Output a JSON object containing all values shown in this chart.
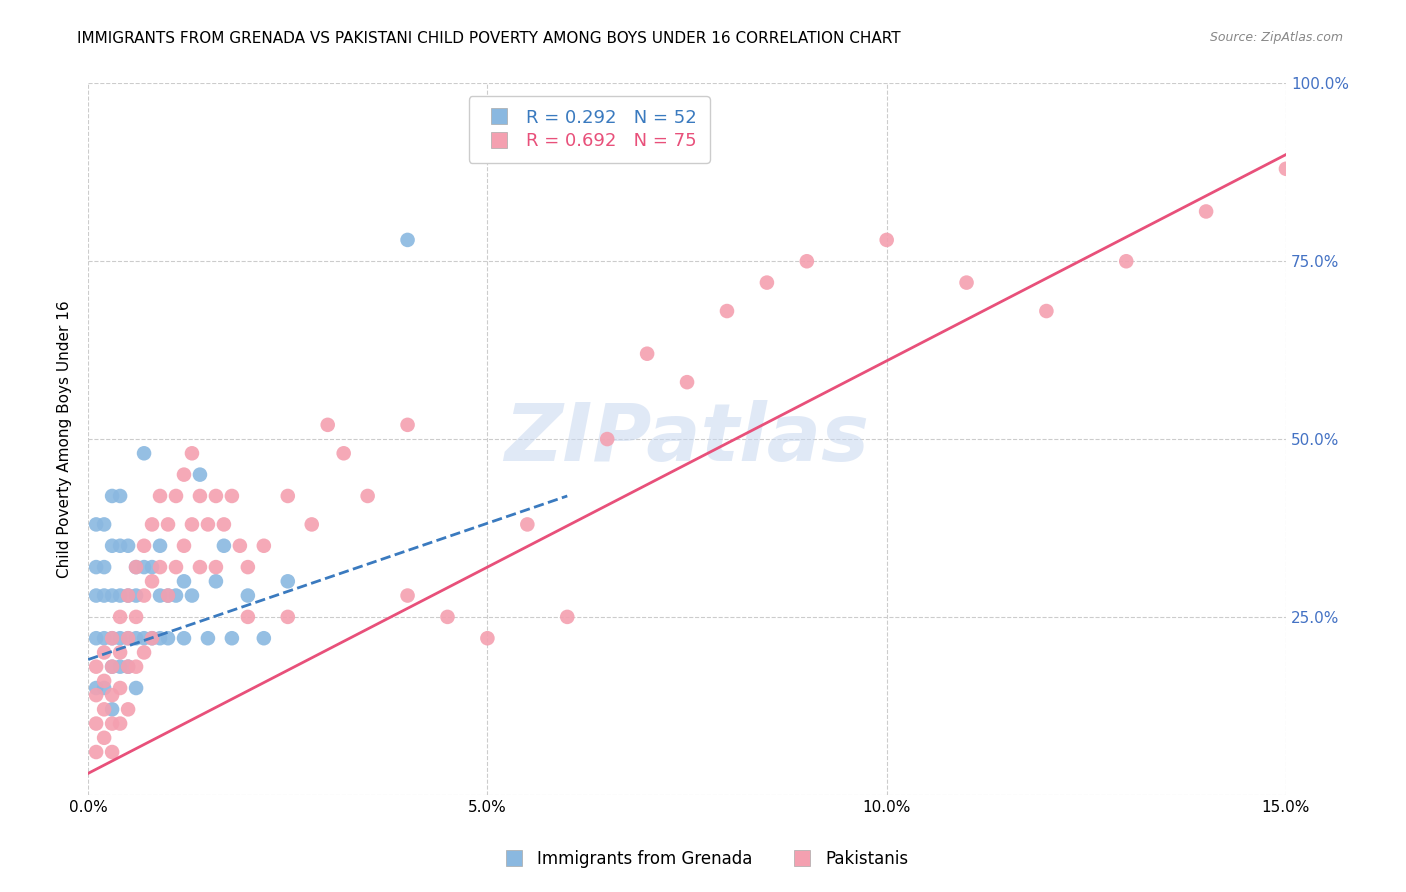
{
  "title": "IMMIGRANTS FROM GRENADA VS PAKISTANI CHILD POVERTY AMONG BOYS UNDER 16 CORRELATION CHART",
  "source": "Source: ZipAtlas.com",
  "ylabel": "Child Poverty Among Boys Under 16",
  "xlim": [
    0.0,
    0.15
  ],
  "ylim": [
    0.0,
    1.0
  ],
  "xtick_vals": [
    0.0,
    0.05,
    0.1,
    0.15
  ],
  "xtick_labels": [
    "0.0%",
    "5.0%",
    "10.0%",
    "15.0%"
  ],
  "ytick_vals": [
    0.0,
    0.25,
    0.5,
    0.75,
    1.0
  ],
  "ytick_labels_right": [
    "",
    "25.0%",
    "50.0%",
    "75.0%",
    "100.0%"
  ],
  "series": [
    {
      "label": "Immigrants from Grenada",
      "R": 0.292,
      "N": 52,
      "color": "#8ab8e0",
      "line_color": "#3a7abf",
      "line_style": "--",
      "x": [
        0.001,
        0.001,
        0.001,
        0.001,
        0.001,
        0.002,
        0.002,
        0.002,
        0.002,
        0.002,
        0.003,
        0.003,
        0.003,
        0.003,
        0.003,
        0.003,
        0.004,
        0.004,
        0.004,
        0.004,
        0.004,
        0.005,
        0.005,
        0.005,
        0.005,
        0.006,
        0.006,
        0.006,
        0.006,
        0.007,
        0.007,
        0.007,
        0.008,
        0.008,
        0.009,
        0.009,
        0.009,
        0.01,
        0.01,
        0.011,
        0.012,
        0.012,
        0.013,
        0.014,
        0.015,
        0.016,
        0.017,
        0.018,
        0.02,
        0.022,
        0.025,
        0.04
      ],
      "y": [
        0.38,
        0.32,
        0.28,
        0.22,
        0.15,
        0.38,
        0.32,
        0.28,
        0.22,
        0.15,
        0.42,
        0.35,
        0.28,
        0.22,
        0.18,
        0.12,
        0.42,
        0.35,
        0.28,
        0.22,
        0.18,
        0.35,
        0.28,
        0.22,
        0.18,
        0.32,
        0.28,
        0.22,
        0.15,
        0.48,
        0.32,
        0.22,
        0.32,
        0.22,
        0.35,
        0.28,
        0.22,
        0.28,
        0.22,
        0.28,
        0.3,
        0.22,
        0.28,
        0.45,
        0.22,
        0.3,
        0.35,
        0.22,
        0.28,
        0.22,
        0.3,
        0.78
      ]
    },
    {
      "label": "Pakistanis",
      "R": 0.692,
      "N": 75,
      "color": "#f4a0b0",
      "line_color": "#e8507a",
      "line_style": "-",
      "x": [
        0.001,
        0.001,
        0.001,
        0.001,
        0.002,
        0.002,
        0.002,
        0.002,
        0.003,
        0.003,
        0.003,
        0.003,
        0.003,
        0.004,
        0.004,
        0.004,
        0.004,
        0.005,
        0.005,
        0.005,
        0.005,
        0.006,
        0.006,
        0.006,
        0.007,
        0.007,
        0.007,
        0.008,
        0.008,
        0.008,
        0.009,
        0.009,
        0.01,
        0.01,
        0.011,
        0.011,
        0.012,
        0.012,
        0.013,
        0.013,
        0.014,
        0.014,
        0.015,
        0.016,
        0.016,
        0.017,
        0.018,
        0.019,
        0.02,
        0.02,
        0.022,
        0.025,
        0.025,
        0.028,
        0.03,
        0.032,
        0.035,
        0.04,
        0.04,
        0.045,
        0.05,
        0.055,
        0.06,
        0.065,
        0.07,
        0.075,
        0.08,
        0.085,
        0.09,
        0.1,
        0.11,
        0.12,
        0.13,
        0.14,
        0.15
      ],
      "y": [
        0.18,
        0.14,
        0.1,
        0.06,
        0.2,
        0.16,
        0.12,
        0.08,
        0.22,
        0.18,
        0.14,
        0.1,
        0.06,
        0.25,
        0.2,
        0.15,
        0.1,
        0.28,
        0.22,
        0.18,
        0.12,
        0.32,
        0.25,
        0.18,
        0.35,
        0.28,
        0.2,
        0.38,
        0.3,
        0.22,
        0.42,
        0.32,
        0.38,
        0.28,
        0.42,
        0.32,
        0.45,
        0.35,
        0.48,
        0.38,
        0.42,
        0.32,
        0.38,
        0.42,
        0.32,
        0.38,
        0.42,
        0.35,
        0.32,
        0.25,
        0.35,
        0.42,
        0.25,
        0.38,
        0.52,
        0.48,
        0.42,
        0.52,
        0.28,
        0.25,
        0.22,
        0.38,
        0.25,
        0.5,
        0.62,
        0.58,
        0.68,
        0.72,
        0.75,
        0.78,
        0.72,
        0.68,
        0.75,
        0.82,
        0.88
      ]
    }
  ],
  "grenada_line": {
    "x0": 0.0,
    "y0": 0.19,
    "x1": 0.06,
    "y1": 0.42
  },
  "pakistani_line": {
    "x0": 0.0,
    "y0": 0.03,
    "x1": 0.15,
    "y1": 0.9
  },
  "watermark_text": "ZIPatlas",
  "watermark_color": "#c8d8f0",
  "background_color": "#ffffff",
  "grid_color": "#cccccc",
  "title_fontsize": 11,
  "label_fontsize": 11,
  "tick_fontsize": 11,
  "right_tick_color": "#4472c4",
  "source_color": "#888888"
}
